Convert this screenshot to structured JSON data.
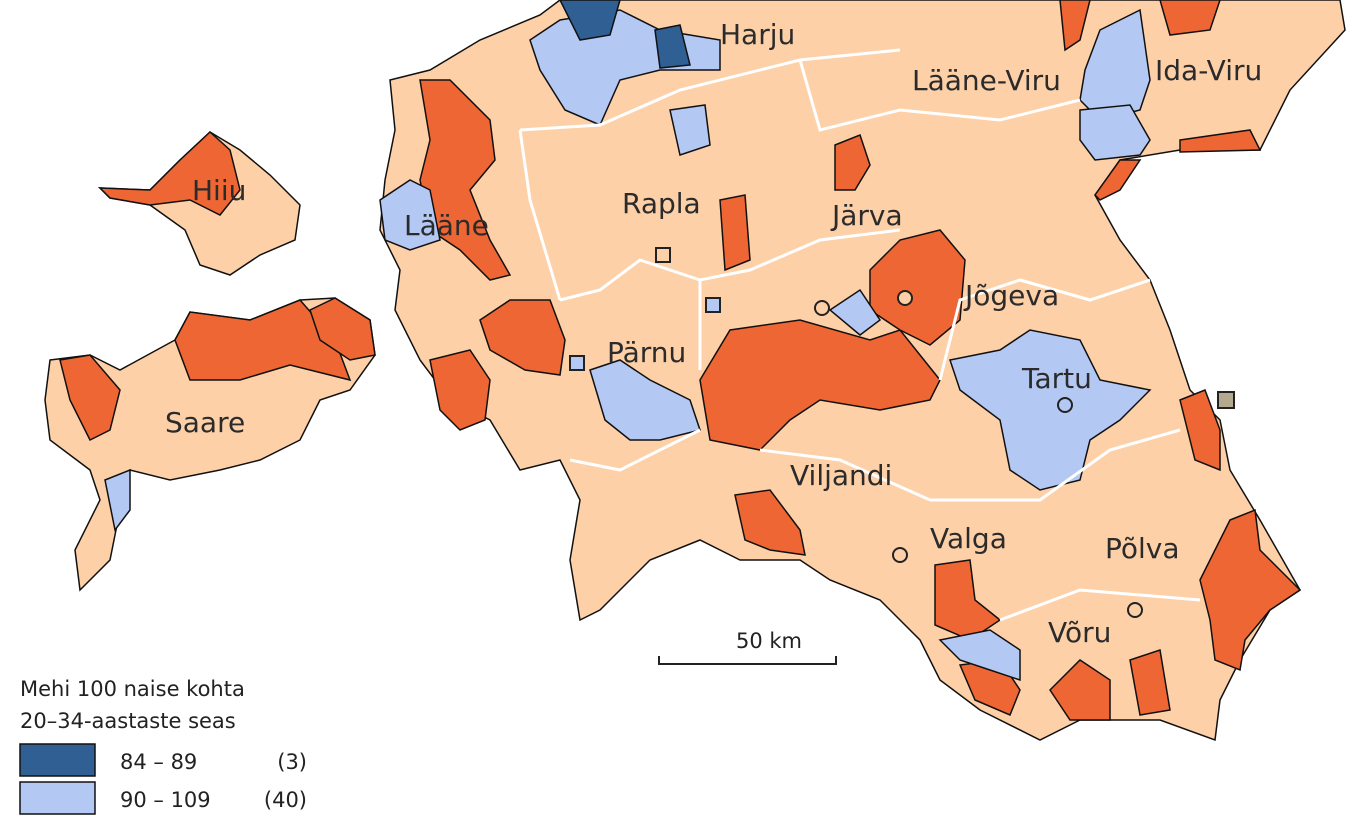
{
  "map": {
    "counties": [
      "Harju",
      "Lääne-Viru",
      "Ida-Viru",
      "Hiiu",
      "Lääne",
      "Rapla",
      "Järva",
      "Jõgeva",
      "Pärnu",
      "Tartu",
      "Saare",
      "Viljandi",
      "Valga",
      "Põlva",
      "Võru"
    ],
    "scale_bar": "50 km",
    "legend": {
      "title": [
        "Mehi 100 naise kohta",
        "20–34-aastaste seas"
      ],
      "items": [
        {
          "label": "84 –  89",
          "count": "(3)",
          "color": "#2f5f93"
        },
        {
          "label": "90 – 109",
          "count": "(40)",
          "color": "#b4c8f4"
        }
      ]
    },
    "colors": {
      "base": "#fdd0a8",
      "high": "#ee6633",
      "low": "#b4c8f4",
      "lowest": "#2f5f93"
    }
  }
}
